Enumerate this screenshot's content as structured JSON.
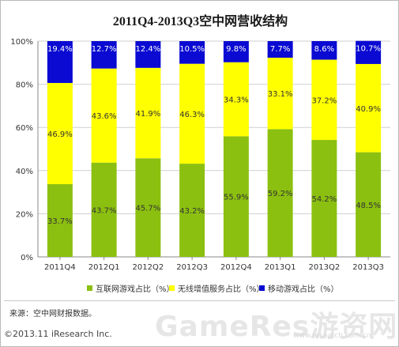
{
  "page": {
    "title": "2011Q4-2013Q3空中网营收结构"
  },
  "chart_data": {
    "type": "bar",
    "stacked": true,
    "title": "2011Q4-2013Q3空中网营收结构",
    "categories": [
      "2011Q4",
      "2012Q1",
      "2012Q2",
      "2012Q3",
      "2012Q4",
      "2013Q1",
      "2013Q2",
      "2013Q3"
    ],
    "series": [
      {
        "name": "互联网游戏占比（%）",
        "color": "#8cc010",
        "values": [
          33.7,
          43.7,
          45.7,
          43.2,
          55.9,
          59.2,
          54.2,
          48.5
        ],
        "labels": [
          "33.7%",
          "43.7%",
          "45.7%",
          "43.2%",
          "55.9%",
          "59.2%",
          "54.2%",
          "48.5%"
        ]
      },
      {
        "name": "无线增值服务占比（%）",
        "color": "#ffff00",
        "values": [
          46.9,
          43.6,
          41.9,
          46.3,
          34.3,
          33.1,
          37.2,
          40.9
        ],
        "labels": [
          "46.9%",
          "43.6%",
          "41.9%",
          "46.3%",
          "34.3%",
          "33.1%",
          "37.2%",
          "40.9%"
        ]
      },
      {
        "name": "移动游戏占比（%）",
        "color": "#0a0ad2",
        "values": [
          19.4,
          12.7,
          12.4,
          10.5,
          9.8,
          7.7,
          8.6,
          10.7
        ],
        "labels": [
          "19.4%",
          "12.7%",
          "12.4%",
          "10.5%",
          "9.8%",
          "7.7%",
          "8.6%",
          "10.7%"
        ]
      }
    ],
    "ylim": [
      0,
      100
    ],
    "yticks": [
      "0%",
      "20%",
      "40%",
      "60%",
      "80%",
      "100%"
    ],
    "grid": true,
    "legend": "bottom"
  },
  "footer": {
    "source": "来源：空中网财报数据。",
    "copyright": "©2013.11 iResearch Inc.",
    "watermark": "GameRes游资网",
    "watermark_url": "www.research.com.cn"
  }
}
